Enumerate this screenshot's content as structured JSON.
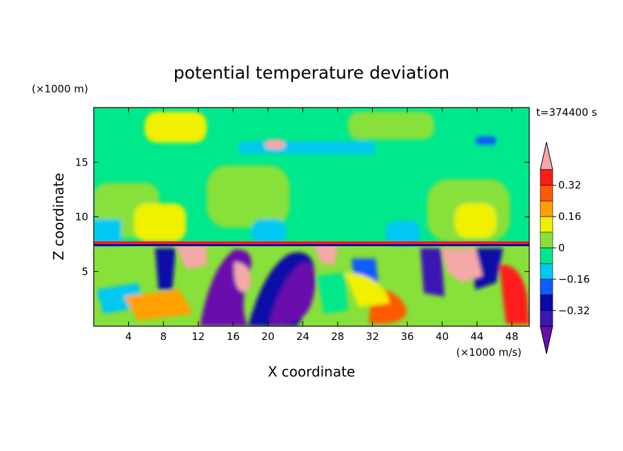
{
  "chart_data": {
    "type": "heatmap",
    "title": "potential temperature deviation",
    "xlabel": "X coordinate",
    "ylabel": "Z coordinate",
    "x_unit": "(×1000 m/s)",
    "y_unit": "(×1000 m)",
    "time_label": "t=374400 s",
    "xlim": [
      0,
      50
    ],
    "ylim": [
      0,
      20
    ],
    "x_ticks": [
      4,
      8,
      12,
      16,
      20,
      24,
      28,
      32,
      36,
      40,
      44,
      48
    ],
    "y_ticks": [
      5,
      10,
      15
    ],
    "colorbar": {
      "labels": [
        "0.32",
        "0.16",
        "0",
        "-0.16",
        "-0.32"
      ],
      "label_values": [
        0.32,
        0.16,
        0,
        -0.16,
        -0.32
      ],
      "levels": [
        -0.4,
        -0.32,
        -0.24,
        -0.16,
        -0.08,
        0,
        0.08,
        0.16,
        0.24,
        0.32,
        0.4
      ],
      "colors": [
        "#6a0dad",
        "#3a18b4",
        "#0a0aa8",
        "#0f5cff",
        "#00c8f0",
        "#00e88c",
        "#88e03a",
        "#f0f000",
        "#ffa000",
        "#ff5a00",
        "#ff1a1a",
        "#f5a8a8"
      ],
      "extend": "both"
    },
    "grid": false,
    "features": [
      {
        "x": [
          0,
          50
        ],
        "z": [
          7.5,
          7.8
        ],
        "value": 0.4
      },
      {
        "x": [
          14,
          20
        ],
        "z": [
          0.5,
          7
        ],
        "value": -0.4
      },
      {
        "x": [
          20,
          25.5
        ],
        "z": [
          0.5,
          7
        ],
        "value": -0.4
      },
      {
        "x": [
          38,
          45
        ],
        "z": [
          1.5,
          7.5
        ],
        "value": 0.4
      },
      {
        "x": [
          8,
          12
        ],
        "z": [
          4,
          7.5
        ],
        "value": 0.4
      },
      {
        "x": [
          30,
          35
        ],
        "z": [
          1,
          4.5
        ],
        "value": 0.32
      }
    ]
  },
  "colors": {
    "background": "#ffffff",
    "text": "#000000",
    "field_upper": "#00e88c",
    "field_lower": "#88e03a"
  }
}
